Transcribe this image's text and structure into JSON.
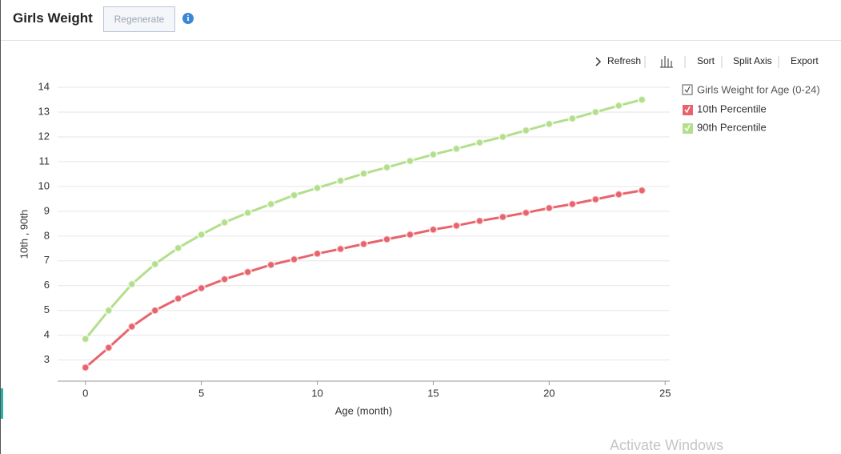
{
  "header": {
    "title": "Girls Weight",
    "button": "Regenerate"
  },
  "toolbar": [
    "Refresh",
    "Sort",
    "Split Axis",
    "Export"
  ],
  "chart_data": {
    "type": "line",
    "legend_title": "Girls Weight for Age (0-24)",
    "x_label": "Age (month)",
    "y_label": "10th , 90th",
    "x": [
      0,
      1,
      2,
      3,
      4,
      5,
      6,
      7,
      8,
      9,
      10,
      11,
      12,
      13,
      14,
      15,
      16,
      17,
      18,
      19,
      20,
      21,
      22,
      23,
      24
    ],
    "series": [
      {
        "name": "10th Percentile",
        "color": "#e8646c",
        "values": [
          2.7,
          3.5,
          4.35,
          5.0,
          5.48,
          5.9,
          6.26,
          6.55,
          6.84,
          7.06,
          7.29,
          7.48,
          7.68,
          7.87,
          8.06,
          8.26,
          8.42,
          8.61,
          8.77,
          8.94,
          9.13,
          9.29,
          9.48,
          9.68,
          9.84
        ]
      },
      {
        "name": "90th Percentile",
        "color": "#b3df8c",
        "values": [
          3.85,
          5.0,
          6.06,
          6.87,
          7.52,
          8.06,
          8.55,
          8.94,
          9.29,
          9.65,
          9.94,
          10.23,
          10.52,
          10.77,
          11.03,
          11.29,
          11.52,
          11.77,
          12.0,
          12.26,
          12.52,
          12.74,
          13.0,
          13.26,
          13.5
        ]
      }
    ],
    "xlim": [
      -1.2,
      25.2
    ],
    "xticks": [
      0,
      5,
      10,
      15,
      20,
      25
    ],
    "ylim": [
      2.15,
      14
    ],
    "yticks": [
      3,
      4,
      5,
      6,
      7,
      8,
      9,
      10,
      11,
      12,
      13,
      14
    ],
    "grid": true
  },
  "watermark": "Activate Windows"
}
